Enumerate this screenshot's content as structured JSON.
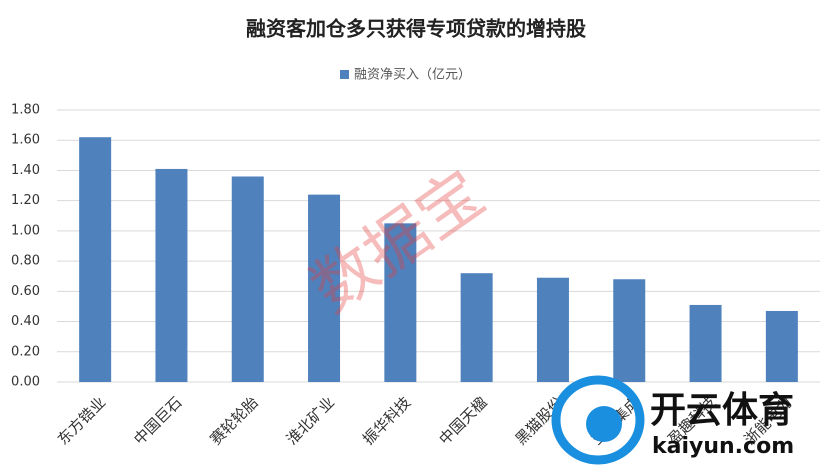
{
  "chart_data": {
    "type": "bar",
    "title": "融资客加仓多只获得专项贷款的增持股",
    "categories": [
      "东方锆业",
      "中国巨石",
      "赛轮轮胎",
      "淮北矿业",
      "振华科技",
      "中国天楹",
      "黑猫股份",
      "亚翔集成",
      "盈趣科技",
      "浙能电力"
    ],
    "series": [
      {
        "name": "融资净买入（亿元）",
        "color": "#4f81bd",
        "values": [
          1.62,
          1.41,
          1.36,
          1.24,
          1.05,
          0.72,
          0.69,
          0.68,
          0.51,
          0.47
        ]
      }
    ],
    "ylim": [
      0,
      1.8
    ],
    "yticks": [
      {
        "value": 0,
        "label": "0.00"
      },
      {
        "value": 0.2,
        "label": "0.20"
      },
      {
        "value": 0.4,
        "label": "0.40"
      },
      {
        "value": 0.6,
        "label": "0.60"
      },
      {
        "value": 0.8,
        "label": "0.80"
      },
      {
        "value": 1.0,
        "label": "1.00"
      },
      {
        "value": 1.2,
        "label": "1.20"
      },
      {
        "value": 1.4,
        "label": "1.40"
      },
      {
        "value": 1.6,
        "label": "1.60"
      },
      {
        "value": 1.8,
        "label": "1.80"
      }
    ],
    "grid": true,
    "legend": "top",
    "watermark": "数据宝",
    "logo_text": "开云体育",
    "logo_url": "kaiyun.com"
  }
}
